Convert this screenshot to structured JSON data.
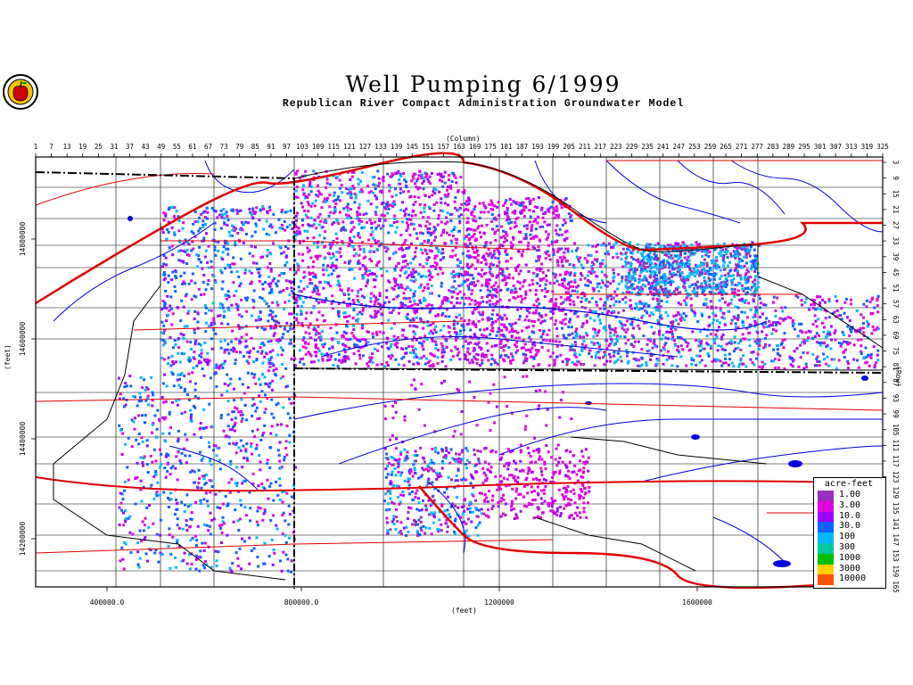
{
  "title": "Well Pumping 6/1999",
  "subtitle": "Republican River Compact Administration Groundwater Model",
  "axes": {
    "column_label": "(Column)",
    "row_label": "(Row)",
    "x_feet_label": "(feet)",
    "y_feet_label": "(feet)",
    "column_ticks": [
      "1",
      "7",
      "13",
      "19",
      "25",
      "31",
      "37",
      "43",
      "49",
      "55",
      "61",
      "67",
      "73",
      "79",
      "85",
      "91",
      "97",
      "103",
      "109",
      "115",
      "121",
      "127",
      "133",
      "139",
      "145",
      "151",
      "157",
      "163",
      "169",
      "175",
      "181",
      "187",
      "193",
      "199",
      "205",
      "211",
      "217",
      "223",
      "229",
      "235",
      "241",
      "247",
      "253",
      "259",
      "265",
      "271",
      "277",
      "283",
      "289",
      "295",
      "301",
      "307",
      "313",
      "319",
      "325"
    ],
    "row_ticks": [
      "3",
      "9",
      "15",
      "21",
      "27",
      "33",
      "39",
      "45",
      "51",
      "57",
      "63",
      "69",
      "75",
      "81",
      "87",
      "93",
      "99",
      "105",
      "111",
      "117",
      "123",
      "129",
      "135",
      "141",
      "147",
      "153",
      "159",
      "165"
    ],
    "x_feet_ticks": [
      "400000.0",
      "800000.0",
      "1200000",
      "1600000"
    ],
    "y_feet_ticks": [
      "14800000",
      "14600000",
      "14400000",
      "14200000"
    ]
  },
  "legend": {
    "title": "acre-feet",
    "entries": [
      {
        "label": "1.00",
        "color": "#9b30c0"
      },
      {
        "label": "3.00",
        "color": "#e000e0"
      },
      {
        "label": "10.0",
        "color": "#a000ff"
      },
      {
        "label": "30.0",
        "color": "#1060ff"
      },
      {
        "label": "100",
        "color": "#00b8ff"
      },
      {
        "label": "300",
        "color": "#00c8a0"
      },
      {
        "label": "1000",
        "color": "#00c000"
      },
      {
        "label": "3000",
        "color": "#ffd000"
      },
      {
        "label": "10000",
        "color": "#ff5000"
      }
    ]
  },
  "colors": {
    "roads": "#e00000",
    "rivers": "#0000e0",
    "boundaries": "#000000"
  }
}
